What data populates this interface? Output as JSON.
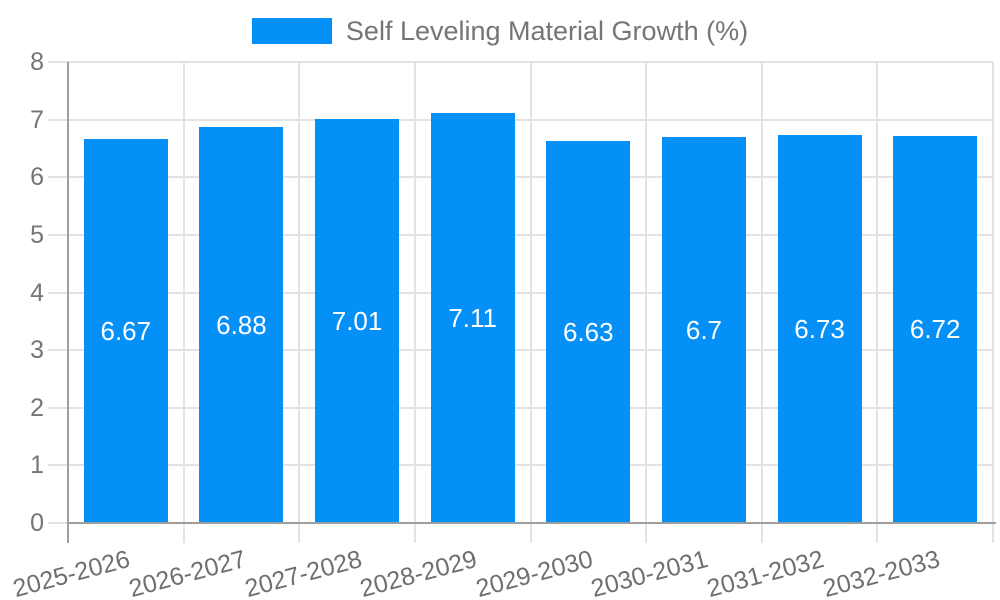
{
  "legend": {
    "label": "Self Leveling Material Growth (%)"
  },
  "colors": {
    "bar": "#0590f8",
    "grid": "#e3e3e3",
    "axis": "#9e9e9e",
    "axis_text": "#757575",
    "value_text": "#ffffff",
    "background": "#ffffff"
  },
  "chart_data": {
    "type": "bar",
    "title": "Self Leveling Material Growth (%)",
    "categories": [
      "2025-2026",
      "2026-2027",
      "2027-2028",
      "2028-2029",
      "2029-2030",
      "2030-2031",
      "2031-2032",
      "2032-2033"
    ],
    "values": [
      6.67,
      6.88,
      7.01,
      7.11,
      6.63,
      6.7,
      6.73,
      6.72
    ],
    "value_labels": [
      "6.67",
      "6.88",
      "7.01",
      "7.11",
      "6.63",
      "6.7",
      "6.73",
      "6.72"
    ],
    "xlabel": "",
    "ylabel": "",
    "ylim": [
      0,
      8
    ],
    "yticks": [
      0,
      1,
      2,
      3,
      4,
      5,
      6,
      7,
      8
    ],
    "ytick_labels": [
      "0",
      "1",
      "2",
      "3",
      "4",
      "5",
      "6",
      "7",
      "8"
    ],
    "grid": true,
    "legend_position": "top",
    "value_label_position": "inside-center",
    "x_label_rotation_deg": -15
  }
}
